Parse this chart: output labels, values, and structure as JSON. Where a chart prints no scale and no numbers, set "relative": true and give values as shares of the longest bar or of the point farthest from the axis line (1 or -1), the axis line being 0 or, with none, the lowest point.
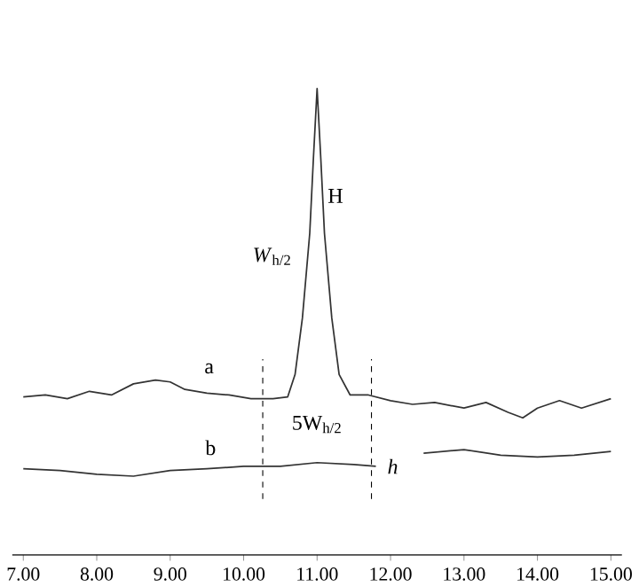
{
  "chart_data": {
    "type": "line",
    "relative": true,
    "xlim": [
      6.85,
      15.15
    ],
    "xticks": [
      {
        "value": 7,
        "label": "7.00"
      },
      {
        "value": 8,
        "label": "8.00"
      },
      {
        "value": 9,
        "label": "9.00"
      },
      {
        "value": 10,
        "label": "10.00"
      },
      {
        "value": 11,
        "label": "11.00"
      },
      {
        "value": 12,
        "label": "12.00"
      },
      {
        "value": 13,
        "label": "13.00"
      },
      {
        "value": 14,
        "label": "14.00"
      },
      {
        "value": 15,
        "label": "15.00"
      }
    ],
    "tick_labels": "x",
    "grid": false,
    "marker": "none",
    "line_style": "solid",
    "series": [
      {
        "color": "#333333",
        "x": [
          7.0,
          7.3,
          7.6,
          7.9,
          8.2,
          8.5,
          8.8,
          9.0,
          9.2,
          9.5,
          9.8,
          10.1,
          10.4,
          10.6,
          10.7,
          10.8,
          10.9,
          10.95,
          11.0,
          11.05,
          11.1,
          11.2,
          11.3,
          11.45,
          11.7,
          12.0,
          12.3,
          12.6,
          13.0,
          13.3,
          13.6,
          13.8,
          14.0,
          14.3,
          14.6,
          15.0
        ],
        "values": [
          0.339,
          0.343,
          0.335,
          0.351,
          0.343,
          0.367,
          0.375,
          0.371,
          0.355,
          0.347,
          0.343,
          0.335,
          0.335,
          0.339,
          0.387,
          0.508,
          0.69,
          0.851,
          1.0,
          0.851,
          0.69,
          0.508,
          0.387,
          0.343,
          0.343,
          0.331,
          0.323,
          0.327,
          0.315,
          0.327,
          0.306,
          0.294,
          0.315,
          0.331,
          0.315,
          0.335
        ]
      },
      {
        "color": "#333333",
        "x": [
          7.0,
          7.5,
          8.0,
          8.5,
          9.0,
          9.5,
          10.0,
          10.5,
          11.0,
          11.5,
          11.8,
          12.1,
          12.45,
          13.0,
          13.5,
          14.0,
          14.5,
          15.0
        ],
        "values": [
          0.185,
          0.181,
          0.173,
          0.169,
          0.181,
          0.185,
          0.19,
          0.19,
          0.198,
          0.194,
          0.19,
          null,
          0.218,
          0.226,
          0.214,
          0.21,
          0.214,
          0.222
        ]
      }
    ],
    "ref_lines": [
      {
        "axis": "x",
        "value": 10.26,
        "line_style": "dashed"
      },
      {
        "axis": "x",
        "value": 11.74,
        "line_style": "dashed"
      }
    ],
    "annotations": [
      "a",
      "b",
      "H",
      "*W*$_{h/2}$",
      "5W$_{h/2}$",
      "*h*"
    ]
  }
}
